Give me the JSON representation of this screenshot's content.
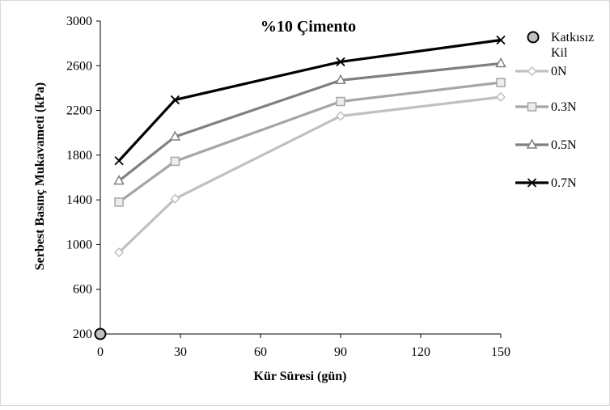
{
  "chart_data": {
    "type": "line",
    "title": "%10 Çimento",
    "xlabel": "Kür Süresi  (gün)",
    "ylabel": "Serbest Basınç Mukavameti (kPa)",
    "xlim": [
      0,
      150
    ],
    "ylim": [
      200,
      3000
    ],
    "xticks": [
      0,
      30,
      60,
      90,
      120,
      150
    ],
    "yticks": [
      200,
      600,
      1000,
      1400,
      1800,
      2200,
      2600,
      3000
    ],
    "grid": false,
    "legend_position": "right",
    "series": [
      {
        "name": "Katkısız Kil",
        "marker": "circle",
        "color": "#000000",
        "fill": "#c0c0c0",
        "x": [
          0
        ],
        "y": [
          200
        ]
      },
      {
        "name": "0N",
        "marker": "diamond",
        "color": "#c0c0c0",
        "fill": "#ffffff",
        "x": [
          7,
          28,
          90,
          150
        ],
        "y": [
          930,
          1410,
          2150,
          2320
        ]
      },
      {
        "name": "0.3N",
        "marker": "square",
        "color": "#a6a6a6",
        "fill": "#eeeee6",
        "x": [
          7,
          28,
          90,
          150
        ],
        "y": [
          1380,
          1745,
          2280,
          2450
        ]
      },
      {
        "name": "0.5N",
        "marker": "triangle",
        "color": "#808080",
        "fill": "#ffffff",
        "x": [
          7,
          28,
          90,
          150
        ],
        "y": [
          1570,
          1965,
          2470,
          2620
        ]
      },
      {
        "name": "0.7N",
        "marker": "x",
        "color": "#000000",
        "fill": "none",
        "x": [
          7,
          28,
          90,
          150
        ],
        "y": [
          1750,
          2295,
          2635,
          2830
        ]
      }
    ]
  }
}
